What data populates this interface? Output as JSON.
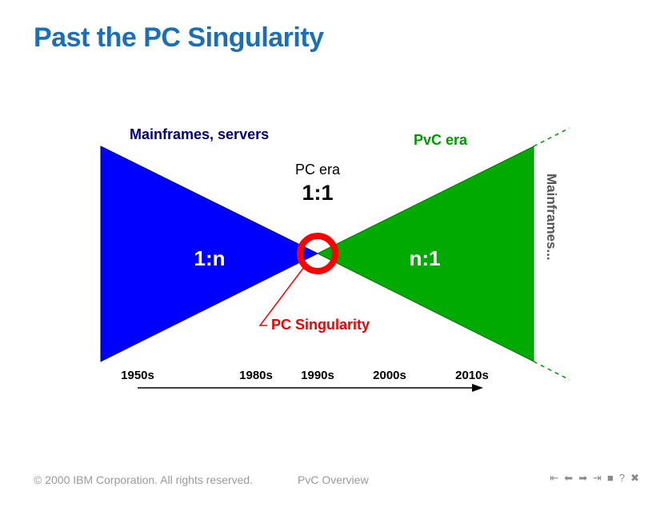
{
  "title": "Past the PC Singularity",
  "diagram": {
    "left_label": "Mainframes, servers",
    "left_ratio": "1:n",
    "center_label": "PC era",
    "center_ratio": "1:1",
    "right_label": "PvC era",
    "right_ratio": "n:1",
    "right_edge_label": "Mainframes...",
    "singularity_label": "PC Singularity",
    "timeline": [
      "1950s",
      "1980s",
      "1990s",
      "2000s",
      "2010s"
    ],
    "colors": {
      "left": "#0000ff",
      "right": "#00aa00",
      "singularity": "#ff0000",
      "left_label": "#000080",
      "right_label": "#009900",
      "right_edge_label": "#555555"
    }
  },
  "footer": {
    "copyright": "© 2000 IBM Corporation. All rights reserved.",
    "center": "PvC Overview"
  },
  "nav_icons": [
    "first-page-icon",
    "previous-page-icon",
    "next-page-icon",
    "last-page-icon",
    "stop-icon",
    "help-icon",
    "close-icon"
  ],
  "nav_glyphs": [
    "⇤",
    "⬅",
    "➡",
    "⇥",
    "■",
    "?",
    "✖"
  ]
}
